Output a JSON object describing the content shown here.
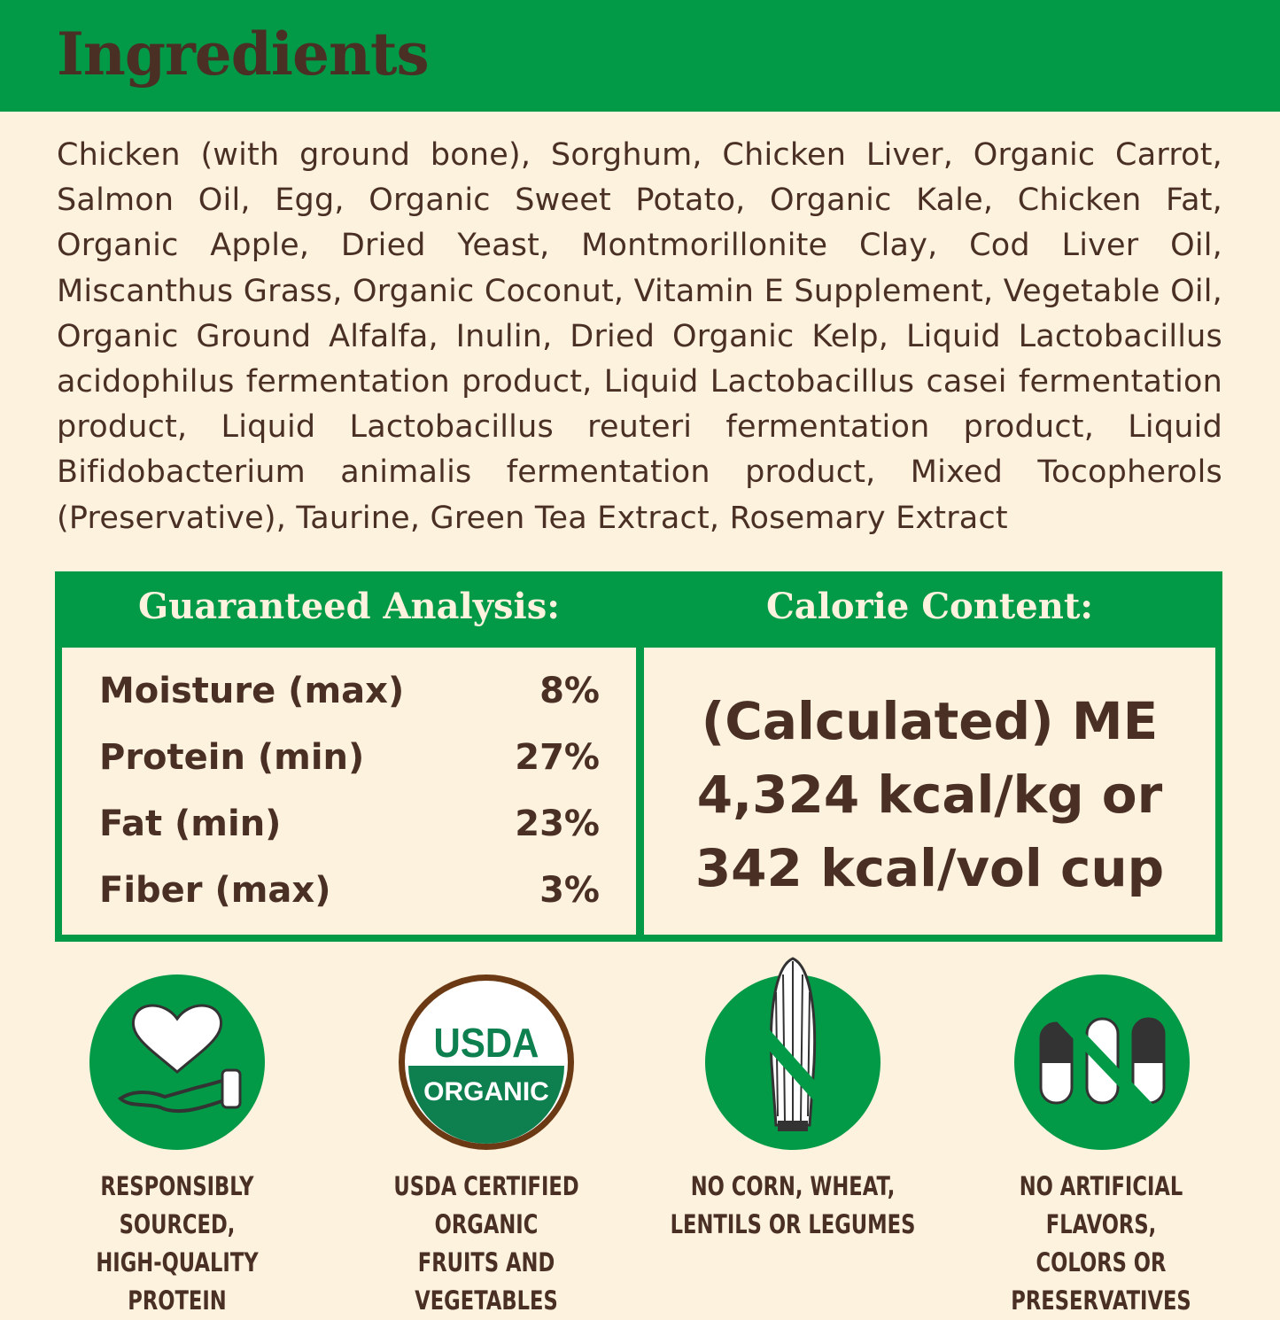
{
  "title": "Ingredients",
  "ingredients": "Chicken (with ground bone), Sorghum, Chicken Liver, Organic Carrot, Salmon Oil, Egg, Organic Sweet Potato, Organic Kale, Chicken Fat, Organic Apple, Dried Yeast, Montmorillonite Clay, Cod Liver Oil, Miscanthus Grass, Organic Coconut, Vitamin E Supplement, Vegetable Oil, Organic Ground Alfalfa, Inulin, Dried Organic Kelp, Liquid Lactobacillus acidophilus fermentation product, Liquid Lactobacillus casei fermentation product, Liquid Lactobacillus reuteri fermentation product, Liquid Bifidobacterium animalis fermentation product, Mixed Tocopherols (Preservative), Taurine, Green Tea Extract, Rosemary Extract",
  "analysis": {
    "heading": "Guaranteed Analysis:",
    "rows": [
      {
        "label": "Moisture (max)",
        "value": "8%"
      },
      {
        "label": "Protein (min)",
        "value": "27%"
      },
      {
        "label": "Fat (min)",
        "value": "23%"
      },
      {
        "label": "Fiber (max)",
        "value": "3%"
      }
    ]
  },
  "calorie": {
    "heading": "Calorie Content:",
    "lines": [
      "(Calculated) ME",
      "4,324 kcal/kg or",
      "342 kcal/vol cup"
    ]
  },
  "badges": [
    {
      "icon": "heart-hand-icon",
      "lines": [
        "RESPONSIBLY SOURCED,",
        "HIGH-QUALITY PROTEIN"
      ]
    },
    {
      "icon": "usda-organic-seal",
      "seal_text": [
        "USDA",
        "ORGANIC"
      ],
      "lines": [
        "USDA CERTIFIED ORGANIC",
        "FRUITS AND VEGETABLES"
      ]
    },
    {
      "icon": "no-corn-icon",
      "lines": [
        "NO CORN, WHEAT,",
        "LENTILS OR LEGUMES"
      ]
    },
    {
      "icon": "no-pills-icon",
      "lines": [
        "NO ARTIFICIAL FLAVORS,",
        "COLORS OR PRESERVATIVES"
      ]
    }
  ],
  "colors": {
    "green": "#029a47",
    "brown": "#4a2f24",
    "cream": "#fdf2de"
  }
}
